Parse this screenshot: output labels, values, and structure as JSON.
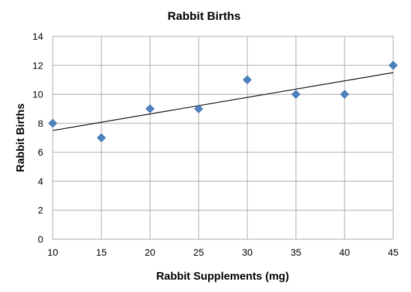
{
  "chart_data": {
    "type": "scatter",
    "title": "Rabbit Births",
    "xlabel": "Rabbit Supplements (mg)",
    "ylabel": "Rabbit Births",
    "xlim": [
      10,
      45
    ],
    "ylim": [
      0,
      14
    ],
    "x_ticks": [
      10,
      15,
      20,
      25,
      30,
      35,
      40,
      45
    ],
    "y_ticks": [
      0,
      2,
      4,
      6,
      8,
      10,
      12,
      14
    ],
    "grid": true,
    "legend": "none",
    "series": [
      {
        "marker": "diamond",
        "color": "#4f81bd",
        "x": [
          10,
          15,
          20,
          25,
          30,
          35,
          40,
          45
        ],
        "y": [
          8,
          7,
          9,
          9,
          11,
          10,
          10,
          12
        ]
      }
    ],
    "trendline": {
      "type": "linear",
      "color": "#000000",
      "x": [
        10,
        45
      ],
      "y": [
        7.5,
        11.5
      ]
    }
  }
}
